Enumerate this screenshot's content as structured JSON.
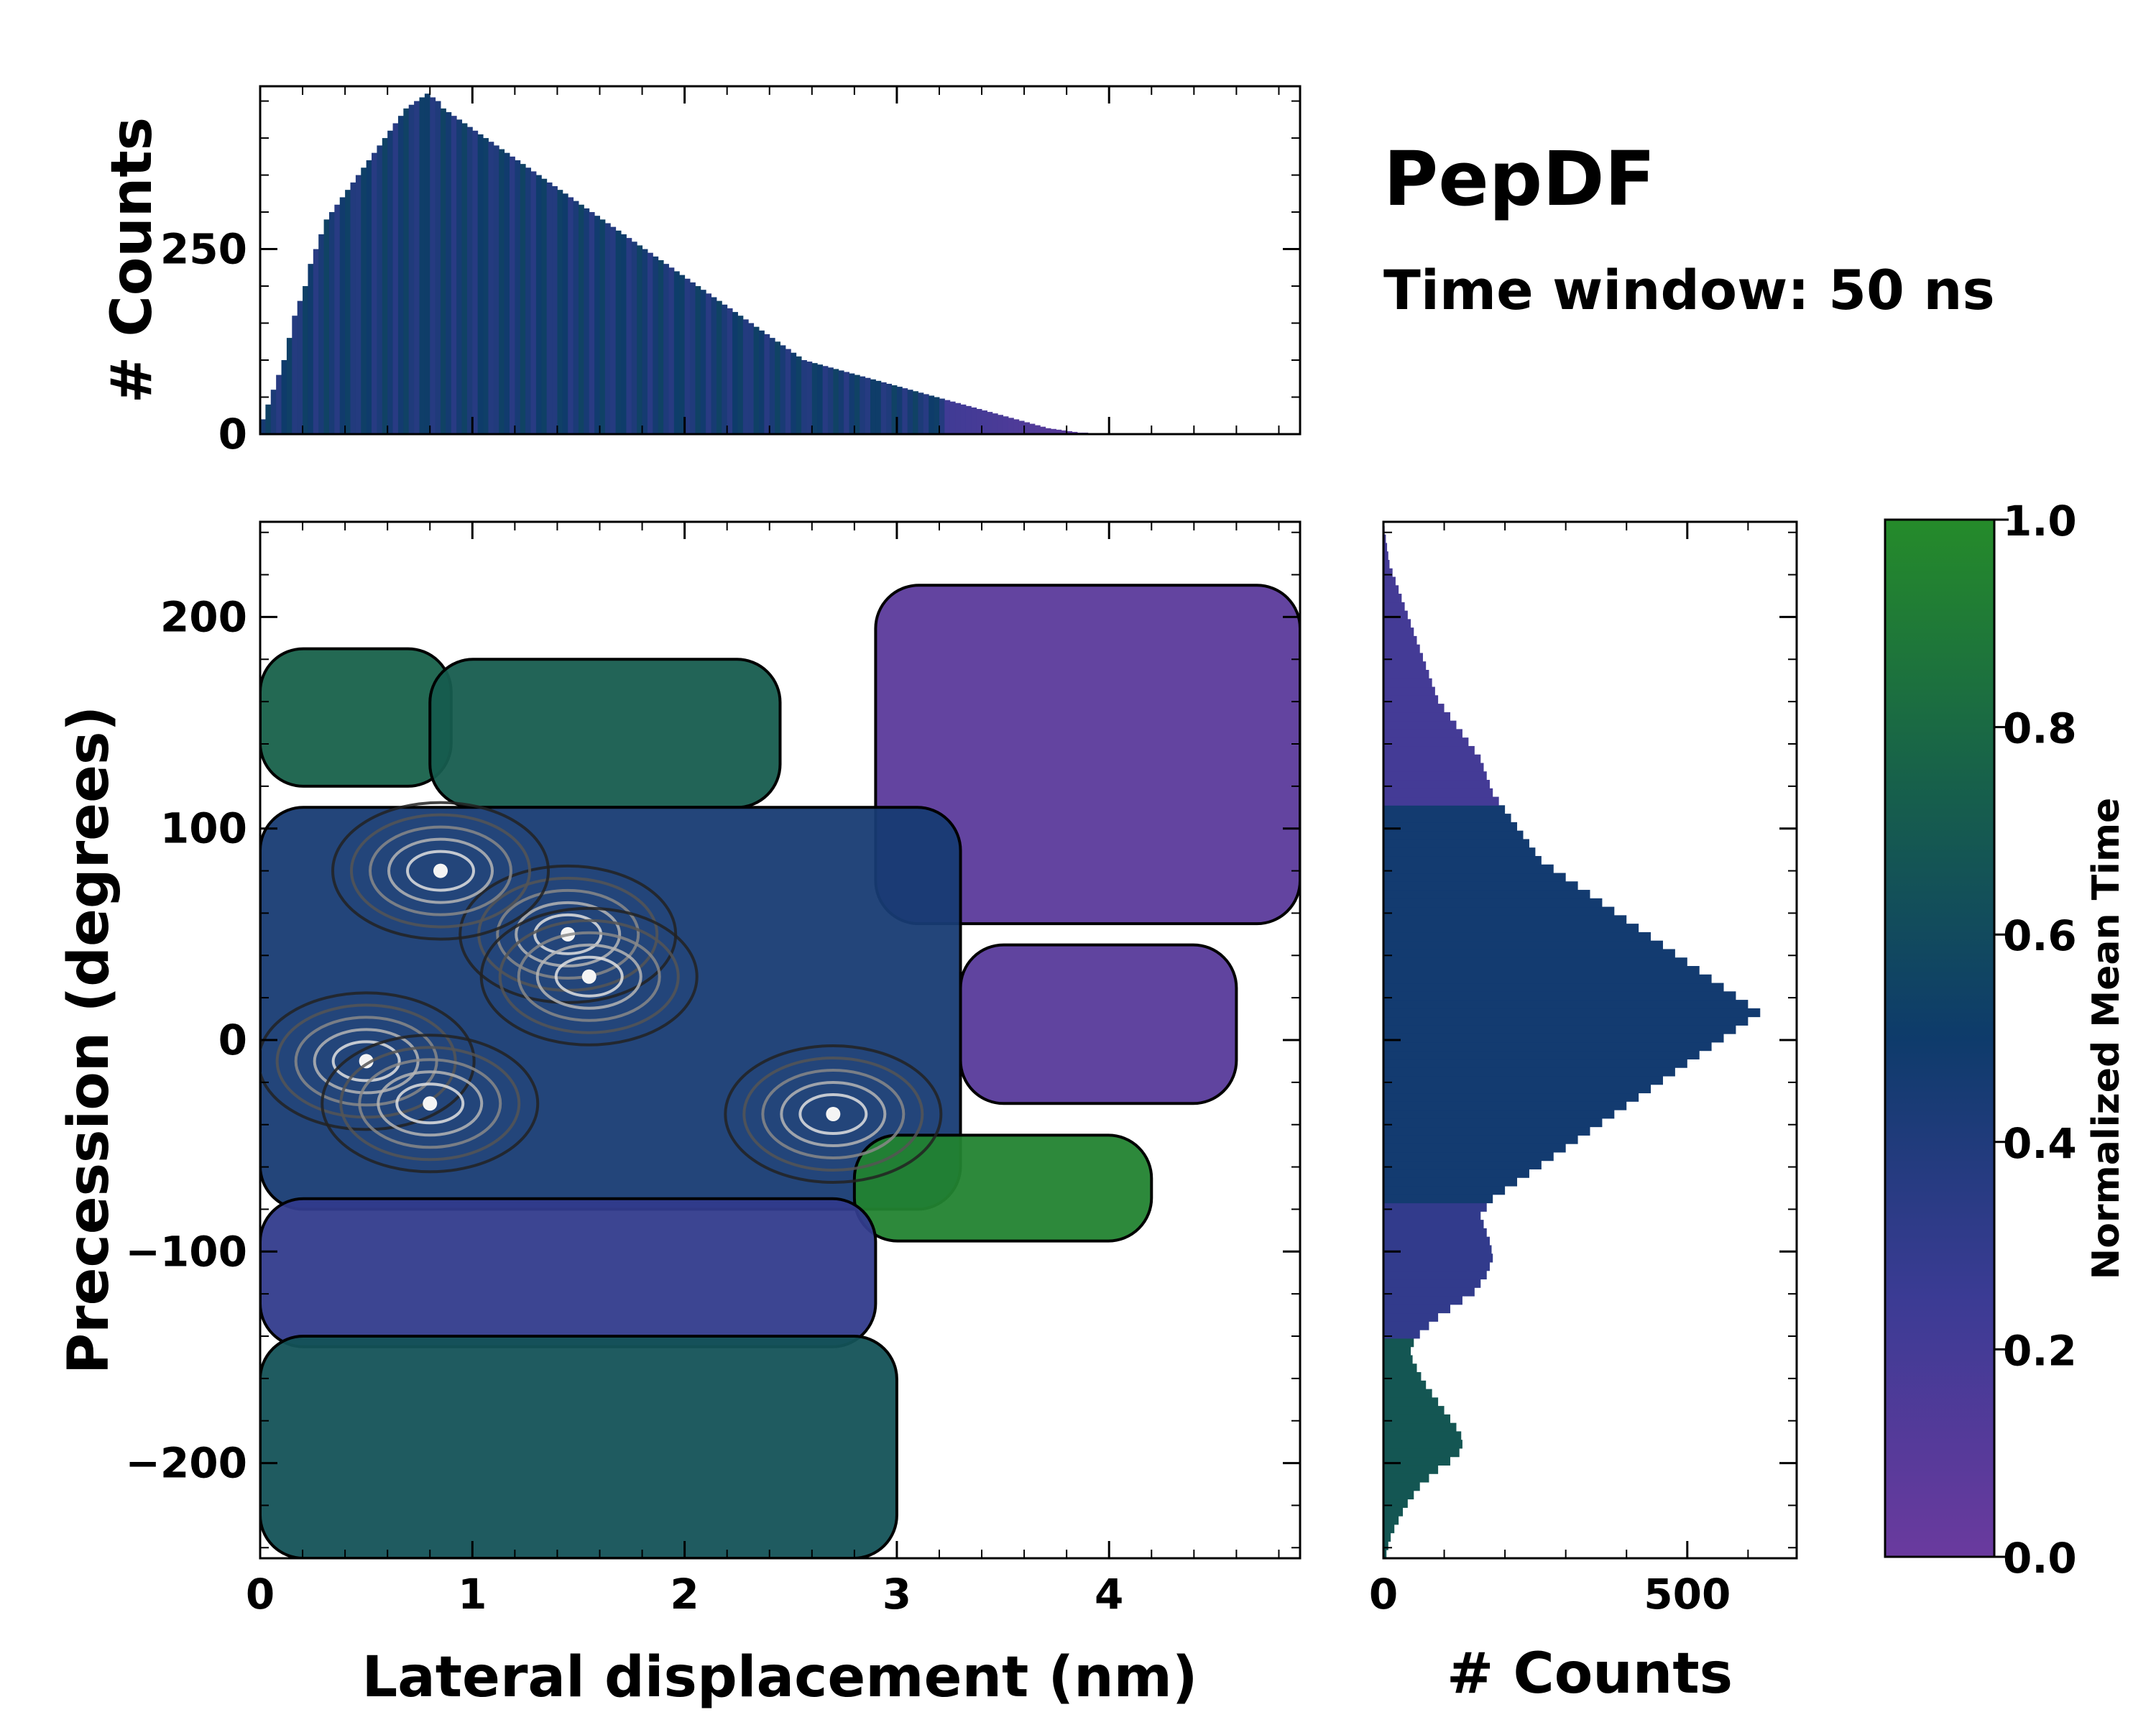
{
  "header": {
    "title": "PepDF",
    "subtitle": "Time window: 50 ns"
  },
  "chart_data": [
    {
      "type": "heatmap",
      "name": "joint-2d-histogram",
      "xlabel": "Lateral displacement (nm)",
      "ylabel": "Precession (degrees)",
      "xlim": [
        0,
        4.9
      ],
      "ylim": [
        -245,
        245
      ],
      "xticks": [
        0,
        1,
        2,
        3,
        4
      ],
      "xtick_labels": [
        "0",
        "1",
        "2",
        "3",
        "4"
      ],
      "yticks": [
        -200,
        -100,
        0,
        100,
        200
      ],
      "ytick_labels": [
        "−200",
        "−100",
        "0",
        "100",
        "200"
      ],
      "color_value": "Normalized Mean Time",
      "regions": [
        {
          "x": [
            0.0,
            0.9
          ],
          "y": [
            120,
            185
          ],
          "mean_time": 0.75
        },
        {
          "x": [
            0.8,
            2.45
          ],
          "y": [
            110,
            180
          ],
          "mean_time": 0.72
        },
        {
          "x": [
            2.9,
            4.9
          ],
          "y": [
            55,
            215
          ],
          "mean_time": 0.08
        },
        {
          "x": [
            3.3,
            4.6
          ],
          "y": [
            -30,
            45
          ],
          "mean_time": 0.1
        },
        {
          "x": [
            0.0,
            3.3
          ],
          "y": [
            -80,
            110
          ],
          "mean_time": 0.45
        },
        {
          "x": [
            2.8,
            4.2
          ],
          "y": [
            -95,
            -45
          ],
          "mean_time": 0.95
        },
        {
          "x": [
            0.0,
            2.9
          ],
          "y": [
            -145,
            -75
          ],
          "mean_time": 0.3
        },
        {
          "x": [
            0.0,
            3.0
          ],
          "y": [
            -245,
            -140
          ],
          "mean_time": 0.65
        }
      ],
      "density_peaks": [
        {
          "x": 1.45,
          "y": 50
        },
        {
          "x": 1.55,
          "y": 30
        },
        {
          "x": 0.5,
          "y": -10
        },
        {
          "x": 0.85,
          "y": 80
        },
        {
          "x": 2.7,
          "y": -35
        },
        {
          "x": 0.8,
          "y": -30
        }
      ]
    },
    {
      "type": "bar",
      "name": "top-marginal-histogram",
      "xlabel": "",
      "ylabel": "# Counts",
      "xlim": [
        0,
        4.9
      ],
      "ylim": [
        0,
        470
      ],
      "yticks": [
        0,
        250
      ],
      "ytick_labels": [
        "0",
        "250"
      ],
      "bins": {
        "start": 0.0,
        "step": 0.025
      },
      "series": [
        {
          "name": "Counts by lateral displacement",
          "values": [
            20,
            40,
            60,
            80,
            100,
            130,
            160,
            180,
            200,
            230,
            250,
            270,
            290,
            300,
            310,
            320,
            330,
            340,
            350,
            360,
            370,
            380,
            390,
            400,
            410,
            420,
            430,
            440,
            445,
            450,
            455,
            460,
            455,
            450,
            440,
            435,
            430,
            425,
            420,
            415,
            410,
            405,
            400,
            395,
            390,
            385,
            380,
            375,
            370,
            365,
            360,
            355,
            350,
            345,
            340,
            335,
            330,
            325,
            320,
            315,
            310,
            305,
            300,
            295,
            290,
            285,
            280,
            275,
            270,
            265,
            260,
            255,
            250,
            245,
            240,
            235,
            230,
            225,
            220,
            215,
            210,
            205,
            200,
            195,
            190,
            185,
            180,
            175,
            170,
            165,
            160,
            155,
            150,
            145,
            140,
            135,
            130,
            125,
            120,
            115,
            110,
            105,
            100,
            98,
            96,
            94,
            92,
            90,
            88,
            86,
            84,
            82,
            80,
            78,
            76,
            74,
            72,
            70,
            68,
            66,
            64,
            62,
            60,
            58,
            56,
            54,
            52,
            50,
            48,
            46,
            44,
            42,
            40,
            38,
            36,
            34,
            32,
            30,
            28,
            26,
            24,
            22,
            20,
            18,
            16,
            14,
            12,
            10,
            8,
            7,
            6,
            5,
            4,
            3,
            2,
            2,
            1,
            1,
            0,
            0
          ]
        }
      ]
    },
    {
      "type": "bar",
      "orientation": "horizontal",
      "name": "right-marginal-histogram",
      "xlabel": "# Counts",
      "ylabel": "",
      "xlim": [
        0,
        680
      ],
      "ylim": [
        -245,
        245
      ],
      "xticks": [
        0,
        500
      ],
      "xtick_labels": [
        "0",
        "500"
      ],
      "bins": {
        "start": -245,
        "step": 4
      },
      "series": [
        {
          "name": "Counts by precession",
          "values": [
            5,
            8,
            12,
            18,
            25,
            32,
            40,
            50,
            60,
            75,
            90,
            110,
            125,
            130,
            128,
            120,
            110,
            100,
            90,
            80,
            70,
            62,
            55,
            48,
            45,
            50,
            60,
            75,
            90,
            110,
            130,
            150,
            160,
            170,
            175,
            180,
            178,
            175,
            170,
            165,
            160,
            170,
            180,
            200,
            220,
            240,
            260,
            280,
            300,
            320,
            340,
            360,
            380,
            400,
            420,
            440,
            460,
            480,
            500,
            520,
            540,
            560,
            580,
            600,
            620,
            600,
            580,
            560,
            540,
            520,
            500,
            480,
            460,
            440,
            420,
            400,
            380,
            360,
            340,
            320,
            300,
            280,
            260,
            250,
            240,
            230,
            220,
            210,
            200,
            190,
            180,
            175,
            170,
            165,
            160,
            150,
            140,
            130,
            120,
            110,
            100,
            90,
            85,
            80,
            75,
            70,
            65,
            60,
            55,
            50,
            45,
            40,
            35,
            30,
            25,
            20,
            15,
            10,
            8,
            6,
            4,
            2,
            1,
            0
          ]
        }
      ]
    },
    {
      "type": "colorbar",
      "name": "colorbar",
      "label": "Normalized Mean Time",
      "range": [
        0.0,
        1.0
      ],
      "ticks": [
        0.0,
        0.2,
        0.4,
        0.6,
        0.8,
        1.0
      ],
      "tick_labels": [
        "0.0",
        "0.2",
        "0.4",
        "0.6",
        "0.8",
        "1.0"
      ],
      "colormap_stops": [
        {
          "value": 0.0,
          "color": "#6a3a9e"
        },
        {
          "value": 0.25,
          "color": "#3b3b94"
        },
        {
          "value": 0.5,
          "color": "#0e3b6b"
        },
        {
          "value": 0.75,
          "color": "#17614a"
        },
        {
          "value": 1.0,
          "color": "#258b2a"
        }
      ]
    }
  ]
}
